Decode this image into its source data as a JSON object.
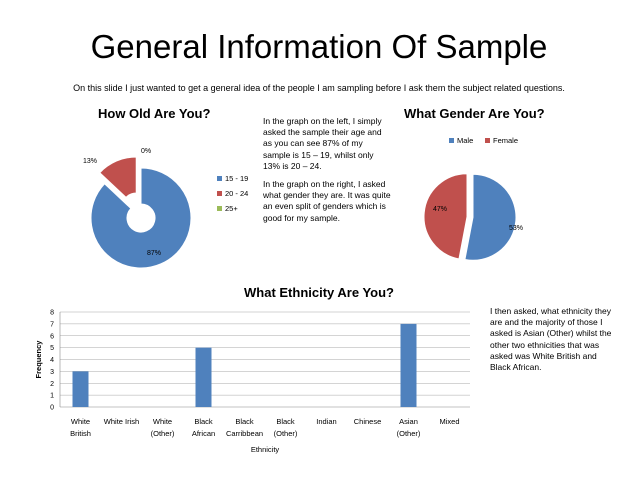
{
  "slide": {
    "title": "General Information Of Sample",
    "intro": "On this slide I just wanted to get a general idea of the people I am sampling before I ask them the subject related questions."
  },
  "notes": {
    "left_p1": "In the graph on the left, I simply asked the sample their age and as you can see 87% of my sample is 15 – 19, whilst only 13% is 20 – 24.",
    "left_p2": "In the graph on the right, I asked what gender they are. It was quite an even split of genders which is good for my sample.",
    "right": "I then asked, what ethnicity they are and  the majority of those I asked is Asian (Other) whilst the other two ethnicities that was asked was White British and Black African."
  },
  "chart_data": [
    {
      "type": "pie",
      "title": "How Old Are You?",
      "categories": [
        "15 - 19",
        "20 - 24",
        "25+"
      ],
      "values": [
        87,
        13,
        0
      ],
      "data_labels": [
        "87%",
        "13%",
        "0%"
      ],
      "colors": [
        "#4F81BD",
        "#C0504D",
        "#9BBB59"
      ],
      "legend_position": "right",
      "exploded_slice": "20 - 24"
    },
    {
      "type": "pie",
      "title": "What Gender Are You?",
      "categories": [
        "Male",
        "Female"
      ],
      "values": [
        53,
        47
      ],
      "data_labels": [
        "53%",
        "47%"
      ],
      "colors": [
        "#4F81BD",
        "#C0504D"
      ],
      "legend_position": "top",
      "exploded": true
    },
    {
      "type": "bar",
      "title": "What Ethnicity Are You?",
      "categories": [
        [
          "White",
          "British"
        ],
        [
          "White Irish"
        ],
        [
          "White",
          "(Other)"
        ],
        [
          "Black",
          "African"
        ],
        [
          "Black",
          "Carribbean"
        ],
        [
          "Black",
          "(Other)"
        ],
        [
          "Indian"
        ],
        [
          "Chinese"
        ],
        [
          "Asian",
          "(Other)"
        ],
        [
          "Mixed"
        ]
      ],
      "values": [
        3,
        0,
        0,
        5,
        0,
        0,
        0,
        0,
        7,
        0
      ],
      "xlabel": "Ethnicity",
      "ylabel": "Frequency",
      "ylim": [
        0,
        8
      ],
      "yticks": [
        0,
        1,
        2,
        3,
        4,
        5,
        6,
        7,
        8
      ],
      "grid": true,
      "bar_color": "#4F81BD"
    }
  ]
}
